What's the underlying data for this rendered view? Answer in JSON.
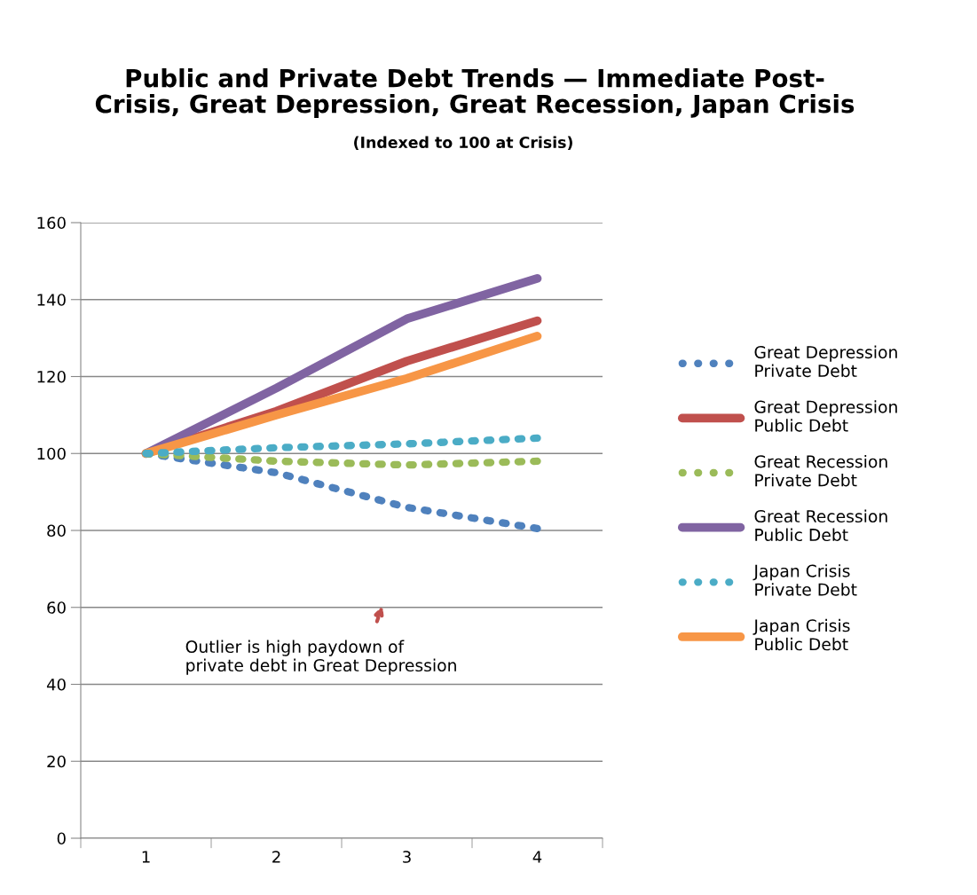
{
  "chart_data": {
    "type": "line",
    "title": "Public and Private Debt Trends — Immediate Post-\nCrisis, Great Depression, Great Recession, Japan Crisis",
    "subtitle": "(Indexed to 100 at Crisis)",
    "categories": [
      "1",
      "2",
      "3",
      "4"
    ],
    "series": [
      {
        "name": "Great Depression\nPrivate Debt",
        "color": "#4f81bd",
        "line_style": "dotted",
        "values": [
          100,
          95,
          86,
          80.5
        ]
      },
      {
        "name": "Great Depression\nPublic Debt",
        "color": "#c0504d",
        "line_style": "solid",
        "values": [
          100,
          111,
          124,
          134.5
        ]
      },
      {
        "name": "Great Recession\nPrivate Debt",
        "color": "#9bbb59",
        "line_style": "dotted",
        "values": [
          100,
          98,
          97,
          98
        ]
      },
      {
        "name": "Great Recession\nPublic Debt",
        "color": "#8064a2",
        "line_style": "solid",
        "values": [
          100,
          117,
          135,
          145.5
        ]
      },
      {
        "name": "Japan Crisis\nPrivate Debt",
        "color": "#4bacc6",
        "line_style": "dotted",
        "values": [
          100,
          101.5,
          102.5,
          104
        ]
      },
      {
        "name": "Japan Crisis\nPublic Debt",
        "color": "#f79646",
        "line_style": "solid",
        "values": [
          100,
          110,
          119.5,
          130.5
        ]
      }
    ],
    "ylim": [
      0,
      160
    ],
    "yticks": [
      0,
      20,
      40,
      60,
      80,
      100,
      120,
      140,
      160
    ],
    "grid": "y",
    "legend": "right",
    "annotations": [
      "Outlier is high paydown of\nprivate debt in Great Depression"
    ]
  }
}
